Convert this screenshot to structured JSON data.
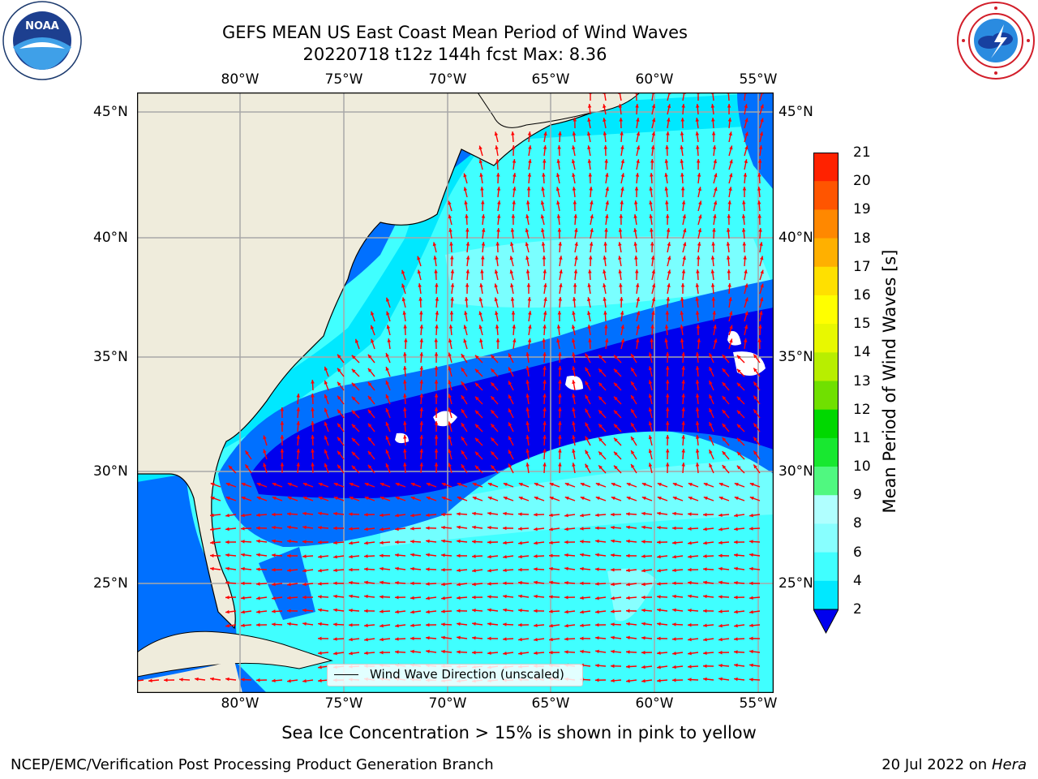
{
  "header": {
    "title_line1": "GEFS MEAN US East Coast Mean Period of Wind Waves",
    "title_line2": "20220718 t12z 144h fcst   Max: 8.36"
  },
  "logos": {
    "left": {
      "text": "NOAA",
      "icon": "noaa-logo-icon"
    },
    "right": {
      "icon": "national-weather-service-logo-icon"
    }
  },
  "map": {
    "lon_ticks": [
      "80°W",
      "75°W",
      "70°W",
      "65°W",
      "60°W",
      "55°W"
    ],
    "lat_ticks": [
      "45°N",
      "40°N",
      "35°N",
      "30°N",
      "25°N"
    ],
    "legend_label": "Wind Wave Direction (unscaled)",
    "arrow_color": "#ff0000",
    "land_color": "#efecdc"
  },
  "colorbar": {
    "title": "Mean Period of Wind Waves [s]",
    "labels": [
      "2",
      "4",
      "6",
      "8",
      "9",
      "10",
      "11",
      "12",
      "13",
      "14",
      "15",
      "16",
      "17",
      "18",
      "19",
      "20",
      "21"
    ],
    "colors": [
      "#0070ff",
      "#00e8ff",
      "#40ffff",
      "#88ffff",
      "#b0ffff",
      "#50f880",
      "#18e830",
      "#00d800",
      "#70e000",
      "#b8ee00",
      "#e8f800",
      "#ffff00",
      "#ffe000",
      "#ffb000",
      "#ff8800",
      "#ff5500",
      "#ff2200",
      "#ff0000"
    ],
    "under_color": "#0000ee"
  },
  "footer": {
    "ice_note": "Sea Ice Concentration > 15% is shown in pink to yellow",
    "org": "NCEP/EMC/Verification Post Processing Product Generation Branch",
    "date": "20 Jul 2022 on ",
    "machine": "Hera"
  }
}
